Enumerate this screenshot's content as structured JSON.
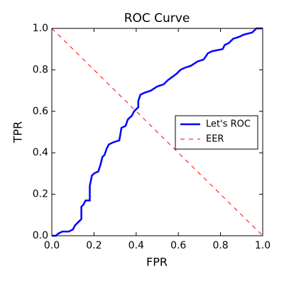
{
  "chart_data": {
    "type": "line",
    "title": "ROC Curve",
    "x_label": "FPR",
    "y_label": "TPR",
    "xlim": [
      0,
      1
    ],
    "ylim": [
      0,
      1
    ],
    "xticks": [
      {
        "value": 0,
        "label": "0.0"
      },
      0.2,
      0.4,
      0.6,
      0.8,
      {
        "value": 1,
        "label": "1.0"
      }
    ],
    "yticks": [
      {
        "value": 0,
        "label": "0.0"
      },
      0.2,
      0.4,
      0.6,
      0.8,
      {
        "value": 1,
        "label": "1.0"
      }
    ],
    "legend": "center right",
    "series": [
      {
        "name": "Let's ROC",
        "color": "#0000ff",
        "line_style": "solid",
        "x": [
          0,
          0.02,
          0.03,
          0.05,
          0.08,
          0.1,
          0.11,
          0.13,
          0.14,
          0.14,
          0.15,
          0.16,
          0.18,
          0.18,
          0.19,
          0.2,
          0.22,
          0.23,
          0.24,
          0.25,
          0.26,
          0.27,
          0.29,
          0.32,
          0.33,
          0.35,
          0.36,
          0.38,
          0.39,
          0.41,
          0.41,
          0.42,
          0.44,
          0.47,
          0.5,
          0.53,
          0.55,
          0.59,
          0.61,
          0.63,
          0.66,
          0.69,
          0.72,
          0.74,
          0.76,
          0.81,
          0.82,
          0.84,
          0.86,
          0.89,
          0.91,
          0.95,
          0.97,
          1
        ],
        "values": [
          0,
          0,
          0.01,
          0.02,
          0.02,
          0.03,
          0.05,
          0.07,
          0.08,
          0.14,
          0.15,
          0.17,
          0.17,
          0.24,
          0.29,
          0.3,
          0.31,
          0.34,
          0.38,
          0.39,
          0.42,
          0.44,
          0.45,
          0.46,
          0.52,
          0.53,
          0.56,
          0.58,
          0.6,
          0.62,
          0.65,
          0.68,
          0.69,
          0.7,
          0.72,
          0.73,
          0.75,
          0.78,
          0.8,
          0.81,
          0.82,
          0.84,
          0.85,
          0.88,
          0.89,
          0.9,
          0.92,
          0.93,
          0.95,
          0.96,
          0.97,
          0.98,
          1,
          1
        ]
      },
      {
        "name": "EER",
        "color": "#ff0000",
        "line_style": "dashed",
        "x": [
          0,
          1
        ],
        "values": [
          1,
          0
        ]
      }
    ]
  }
}
